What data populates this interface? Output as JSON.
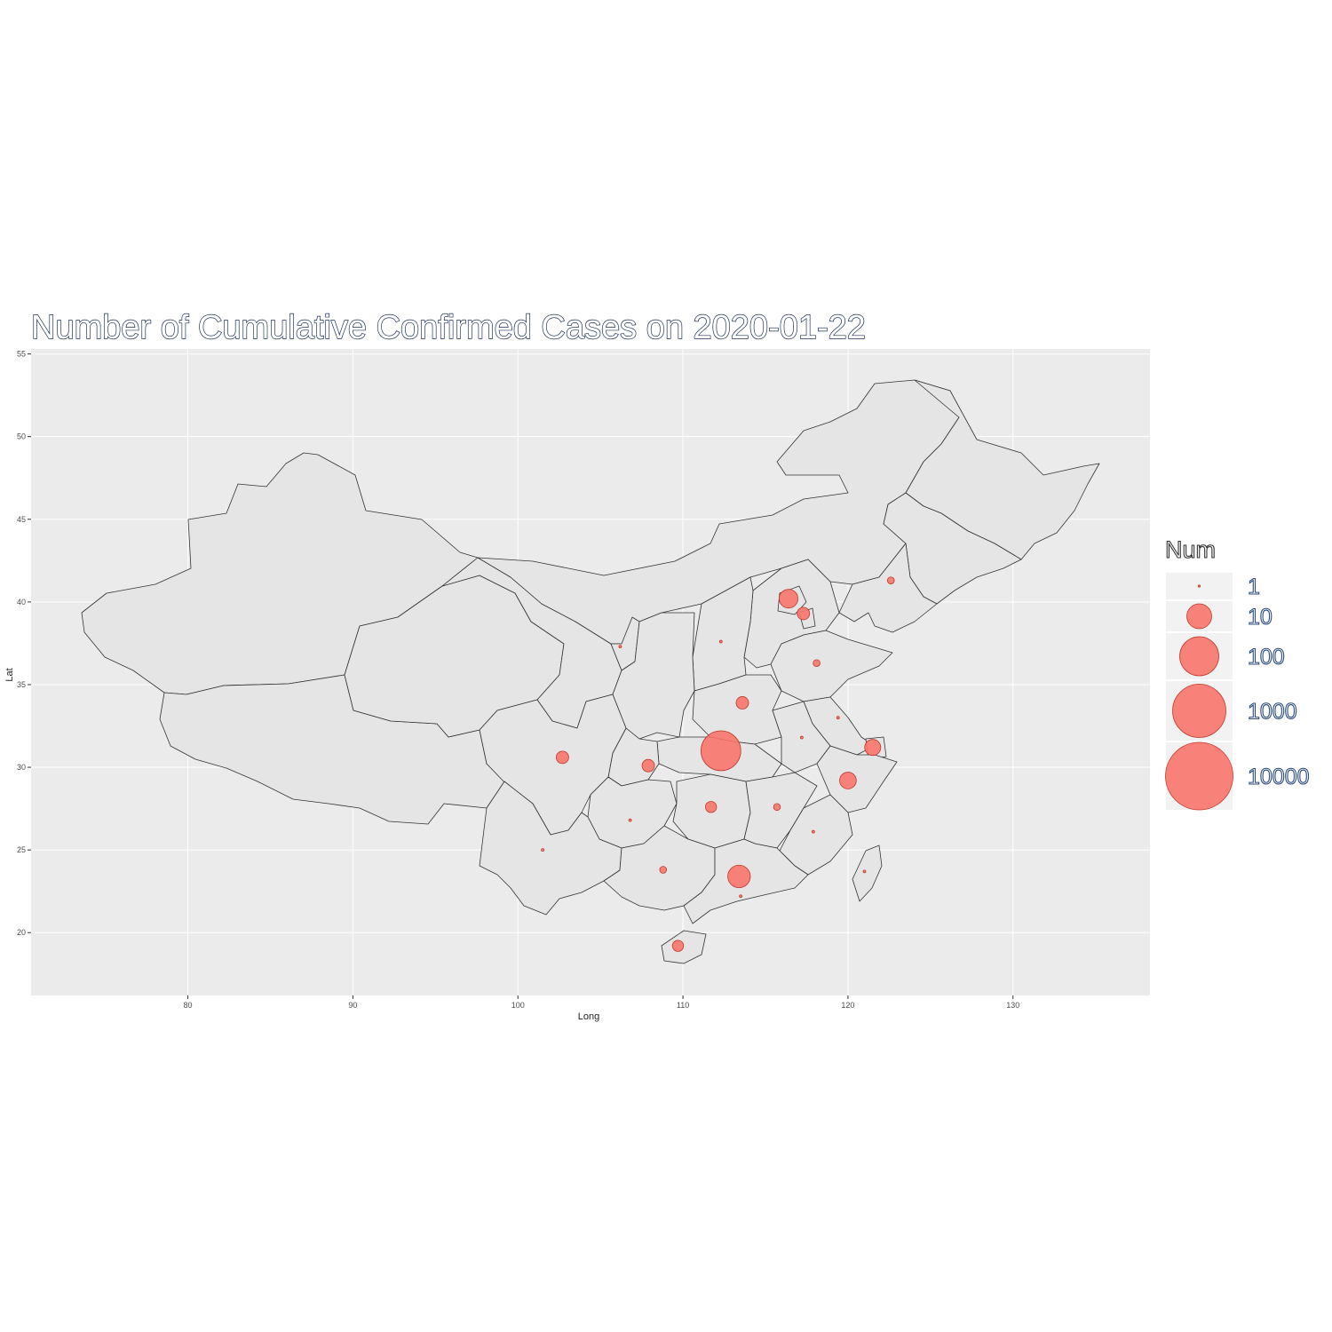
{
  "title": "Number of Cumulative Confirmed Cases on 2020-01-22",
  "chart_data": {
    "type": "scatter",
    "subtype": "bubble-map",
    "title": "Number of Cumulative Confirmed Cases on 2020-01-22",
    "xlabel": "Long",
    "ylabel": "Lat",
    "xlim": [
      70.5,
      138.3
    ],
    "ylim": [
      16.2,
      55.3
    ],
    "x_ticks": [
      80,
      90,
      100,
      110,
      120,
      130
    ],
    "y_ticks": [
      20,
      25,
      30,
      35,
      40,
      45,
      50,
      55
    ],
    "grid": true,
    "size_variable": "Num",
    "size_scale": "log10",
    "legend": {
      "title": "Num",
      "position": "right",
      "levels": [
        1,
        10,
        100,
        1000,
        10000
      ],
      "labels": [
        "1",
        "10",
        "100",
        "1000",
        "10000"
      ]
    },
    "fill_color": "#f8766d",
    "panel_color": "#ebebeb",
    "land_color": "#e5e5e5",
    "border_color": "#333333",
    "points": [
      {
        "long": 112.3,
        "lat": 31.0,
        "num": 444
      },
      {
        "long": 116.4,
        "lat": 40.2,
        "num": 14
      },
      {
        "long": 117.3,
        "lat": 39.3,
        "num": 5
      },
      {
        "long": 121.5,
        "lat": 31.2,
        "num": 9
      },
      {
        "long": 107.9,
        "lat": 30.1,
        "num": 5
      },
      {
        "long": 102.7,
        "lat": 30.6,
        "num": 5
      },
      {
        "long": 120.0,
        "lat": 29.2,
        "num": 10
      },
      {
        "long": 113.4,
        "lat": 23.4,
        "num": 26
      },
      {
        "long": 111.7,
        "lat": 27.6,
        "num": 4
      },
      {
        "long": 113.6,
        "lat": 33.9,
        "num": 5
      },
      {
        "long": 115.7,
        "lat": 27.6,
        "num": 2
      },
      {
        "long": 118.1,
        "lat": 36.3,
        "num": 2
      },
      {
        "long": 122.6,
        "lat": 41.3,
        "num": 2
      },
      {
        "long": 108.8,
        "lat": 23.8,
        "num": 2
      },
      {
        "long": 109.7,
        "lat": 19.2,
        "num": 4
      },
      {
        "long": 112.3,
        "lat": 37.6,
        "num": 1
      },
      {
        "long": 106.2,
        "lat": 37.3,
        "num": 1
      },
      {
        "long": 117.2,
        "lat": 31.8,
        "num": 1
      },
      {
        "long": 119.4,
        "lat": 33.0,
        "num": 1
      },
      {
        "long": 117.9,
        "lat": 26.1,
        "num": 1
      },
      {
        "long": 106.8,
        "lat": 26.8,
        "num": 1
      },
      {
        "long": 101.5,
        "lat": 25.0,
        "num": 1
      },
      {
        "long": 113.5,
        "lat": 22.2,
        "num": 1
      },
      {
        "long": 121.0,
        "lat": 23.7,
        "num": 1
      }
    ]
  }
}
